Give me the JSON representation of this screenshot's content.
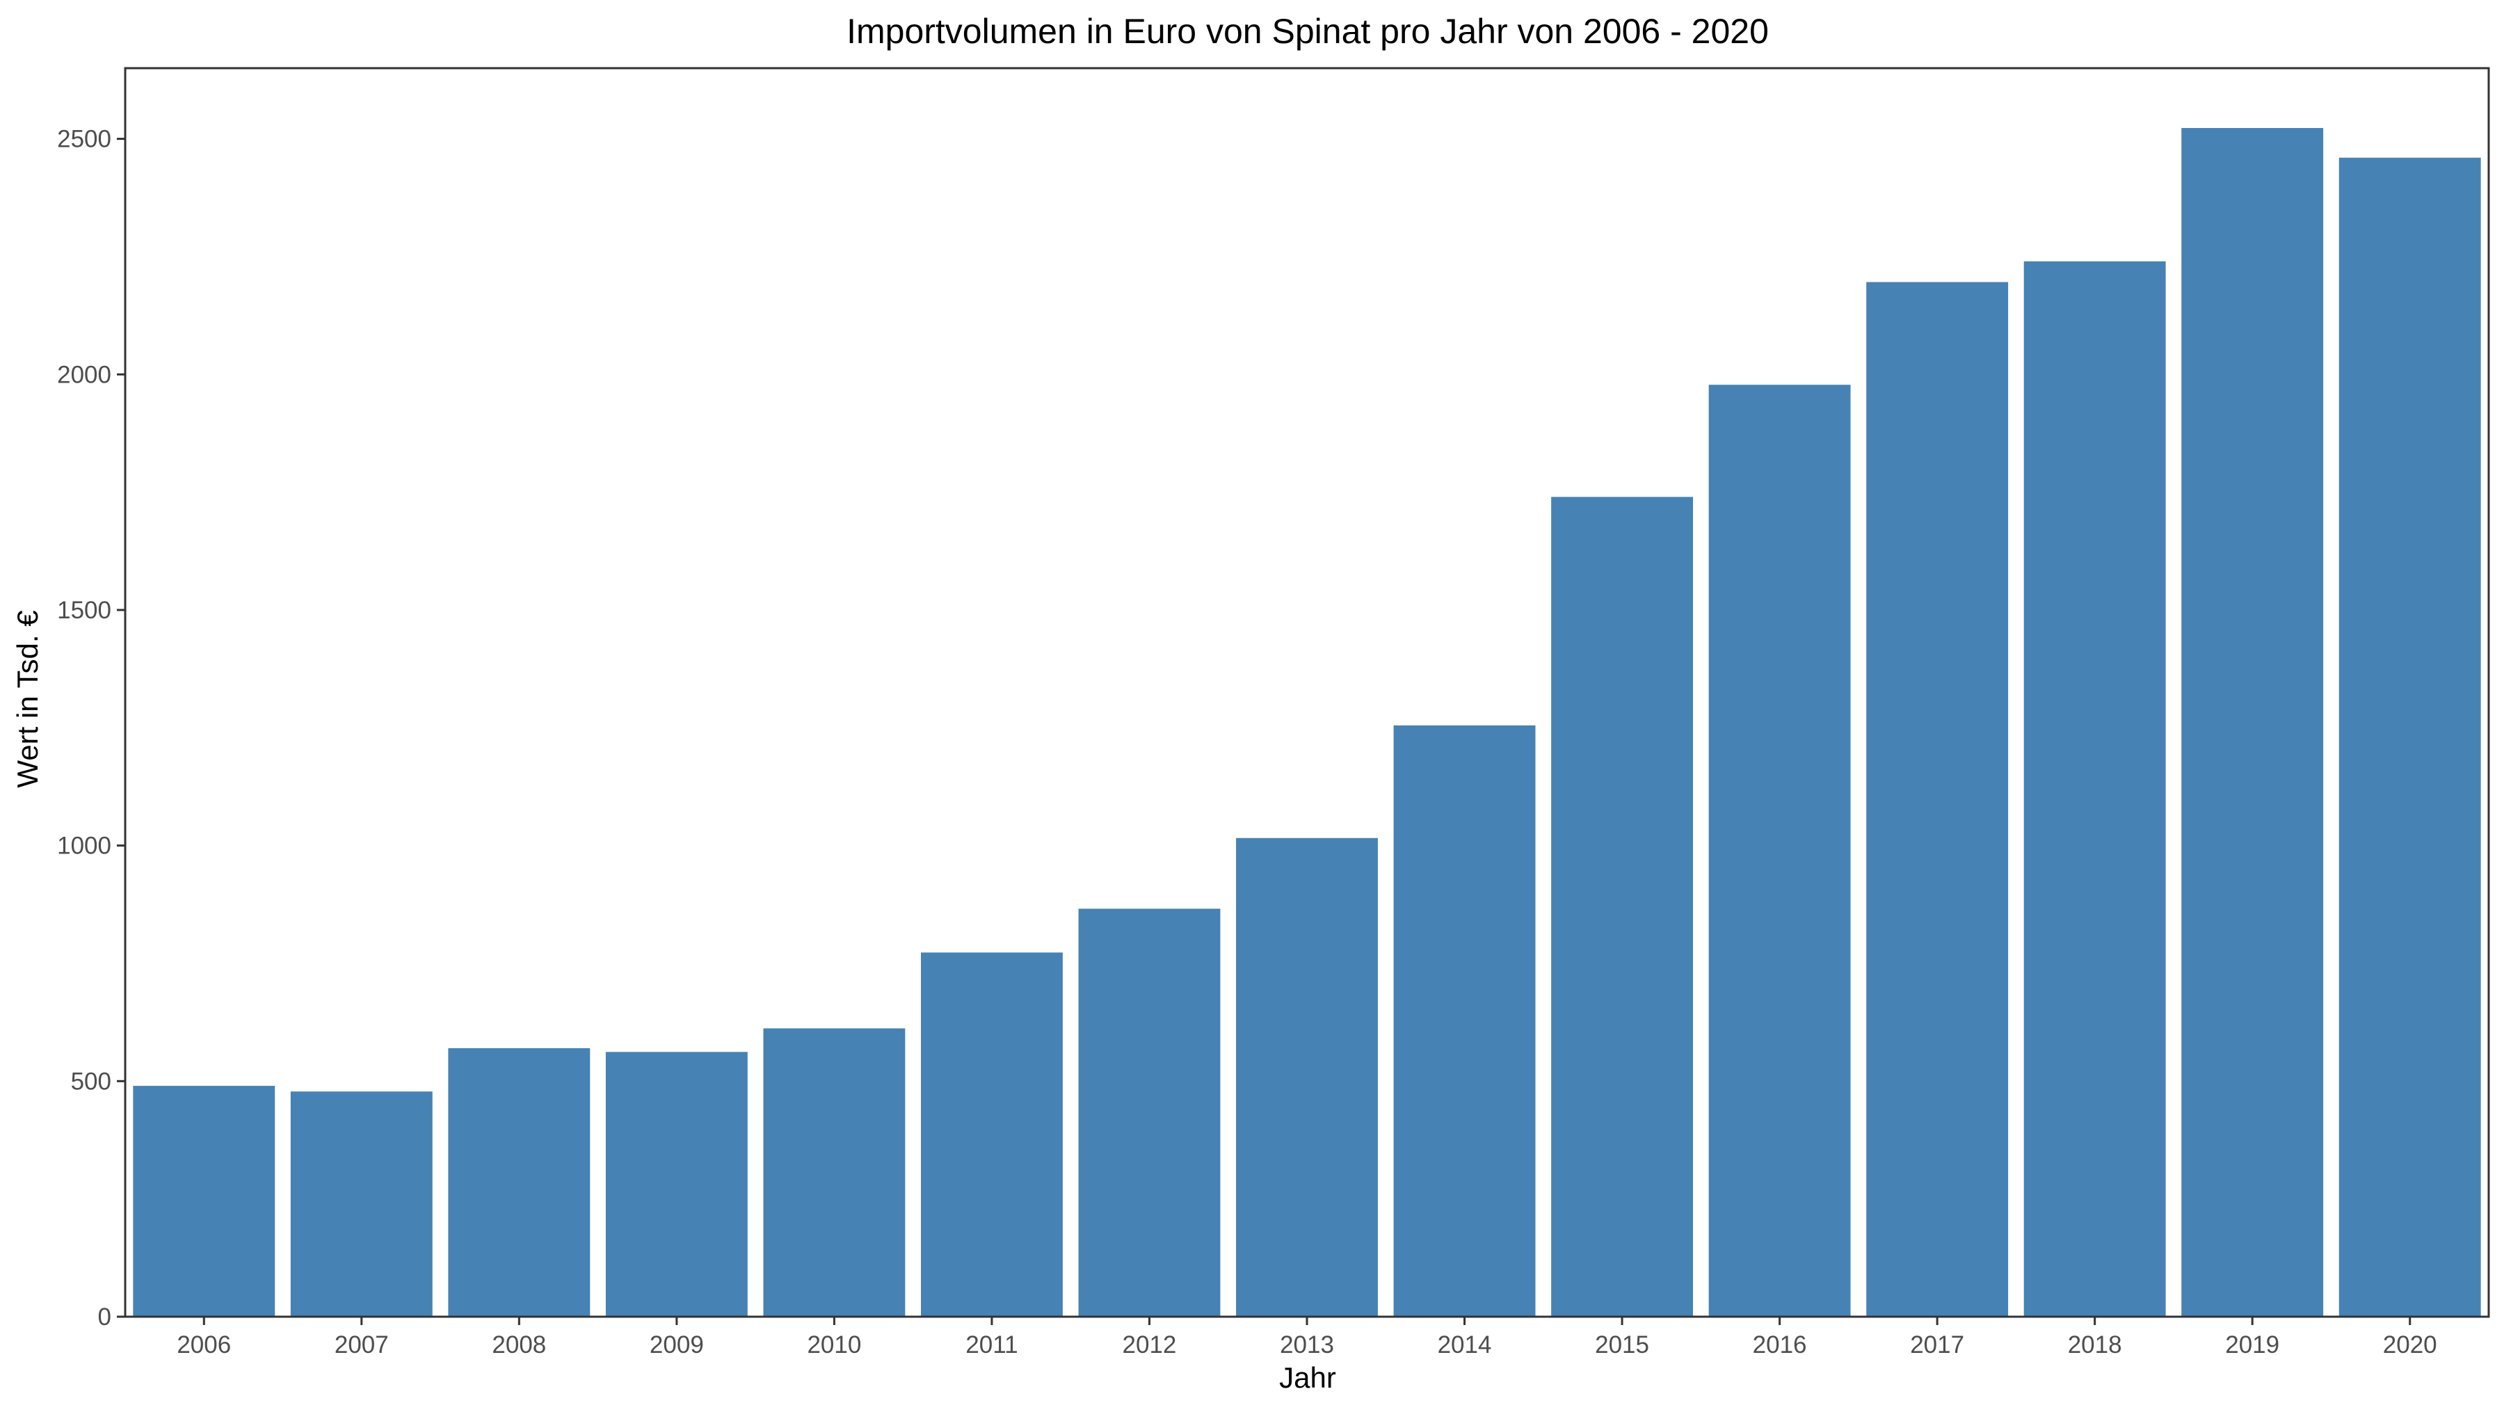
{
  "chart_data": {
    "type": "bar",
    "title": "Importvolumen in Euro von Spinat pro Jahr von 2006 - 2020",
    "xlabel": "Jahr",
    "ylabel": "Wert in Tsd. €",
    "categories": [
      "2006",
      "2007",
      "2008",
      "2009",
      "2010",
      "2011",
      "2012",
      "2013",
      "2014",
      "2015",
      "2016",
      "2017",
      "2018",
      "2019",
      "2020"
    ],
    "values": [
      490,
      478,
      570,
      562,
      612,
      773,
      866,
      1016,
      1255,
      1740,
      1978,
      2196,
      2240,
      2523,
      2460
    ],
    "ylim": [
      0,
      2650
    ],
    "yticks": [
      0,
      500,
      1000,
      1500,
      2000,
      2500
    ],
    "ytick_labels": [
      "0",
      "500",
      "1000",
      "1500",
      "2000",
      "2500"
    ],
    "grid": false,
    "legend": "none",
    "bar_color": "#4682B4"
  }
}
